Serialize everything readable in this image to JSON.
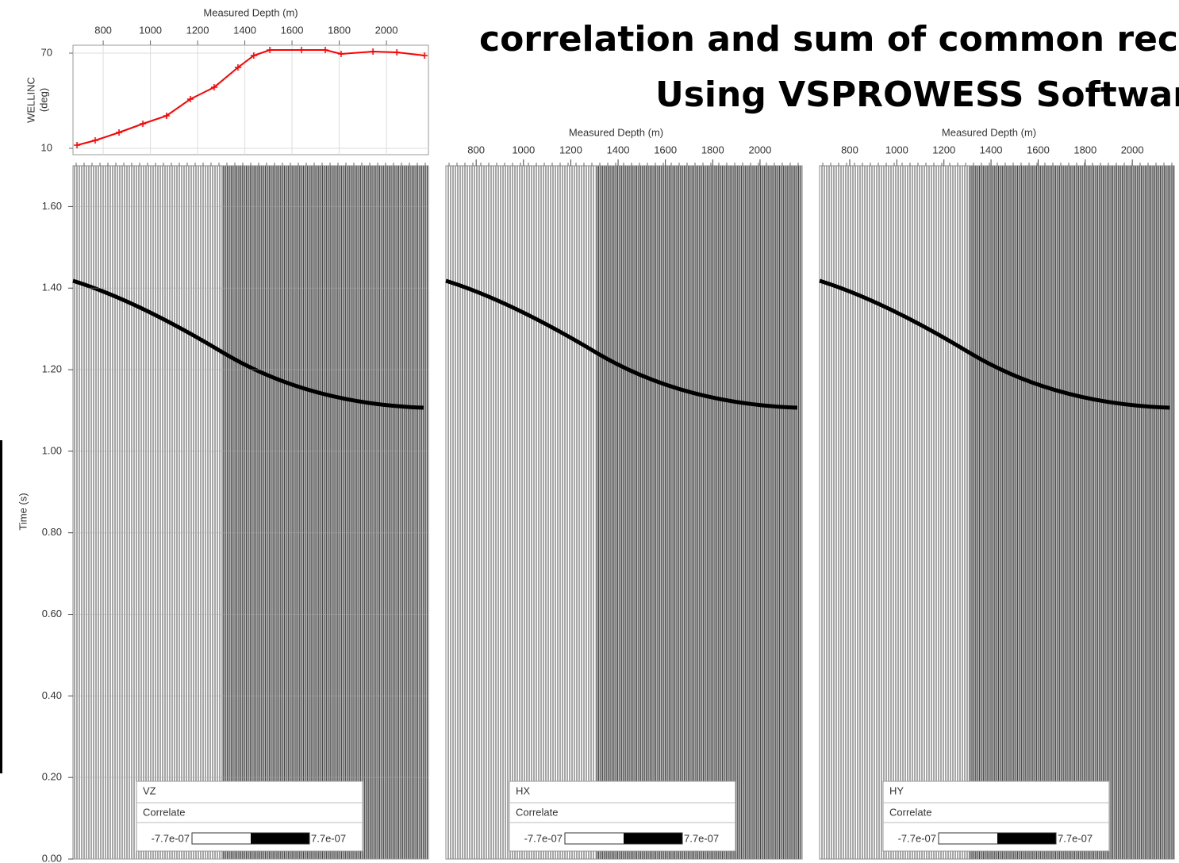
{
  "title_lines": [
    "correlation and sum of common rece",
    "Using VSPROWESS Softwar"
  ],
  "chart_data": [
    {
      "type": "line",
      "xlabel": "Measured Depth (m)",
      "ylabel": [
        "WELLINC",
        "(deg)"
      ],
      "x": [
        689,
        766,
        867,
        968,
        1068,
        1169,
        1270,
        1371,
        1438,
        1506,
        1640,
        1741,
        1808,
        1943,
        2044,
        2161
      ],
      "values": [
        12,
        15,
        20,
        25.5,
        30.5,
        41,
        48.5,
        61,
        68.5,
        72,
        72,
        72,
        69.5,
        71,
        70.5,
        68.5
      ],
      "color": "#ff0000",
      "xlim": [
        672,
        2178
      ],
      "xticks": [
        800,
        1000,
        1200,
        1400,
        1600,
        1800,
        2000
      ],
      "ylim": [
        6,
        75
      ],
      "yticks": [
        10,
        70
      ],
      "grid": true
    },
    {
      "type": "seismic",
      "component": "VZ",
      "process": "Correlate",
      "ylabel": "Time (s)",
      "colorbar": [
        {
          "value": -7.7e-07,
          "label": "-7.7e-07"
        },
        {
          "value": 7.7e-07,
          "label": "7.7e-07"
        }
      ],
      "ylim": [
        0,
        1.7
      ],
      "yticks": [
        {
          "value": 0,
          "label": "0.00"
        },
        {
          "value": 0.2,
          "label": "0.20"
        },
        {
          "value": 0.4,
          "label": "0.40"
        },
        {
          "value": 0.6,
          "label": "0.60"
        },
        {
          "value": 0.8,
          "label": "0.80"
        },
        {
          "value": 1.0,
          "label": "1.00"
        },
        {
          "value": 1.2,
          "label": "1.20"
        },
        {
          "value": 1.4,
          "label": "1.40"
        },
        {
          "value": 1.6,
          "label": "1.60"
        }
      ]
    },
    {
      "type": "seismic",
      "component": "HX",
      "process": "Correlate",
      "xlabel": "Measured Depth (m)",
      "colorbar": [
        {
          "value": -7.7e-07,
          "label": "-7.7e-07"
        },
        {
          "value": 7.7e-07,
          "label": "7.7e-07"
        }
      ],
      "xlim": [
        672,
        2178
      ],
      "xticks": [
        800,
        1000,
        1200,
        1400,
        1600,
        1800,
        2000
      ]
    },
    {
      "type": "seismic",
      "component": "HY",
      "process": "Correlate",
      "xlabel": "Measured Depth (m)",
      "colorbar": [
        {
          "value": -7.7e-07,
          "label": "-7.7e-07"
        },
        {
          "value": 7.7e-07,
          "label": "7.7e-07"
        }
      ],
      "xlim": [
        672,
        2178
      ],
      "xticks": [
        800,
        1000,
        1200,
        1400,
        1600,
        1800,
        2000
      ]
    }
  ]
}
